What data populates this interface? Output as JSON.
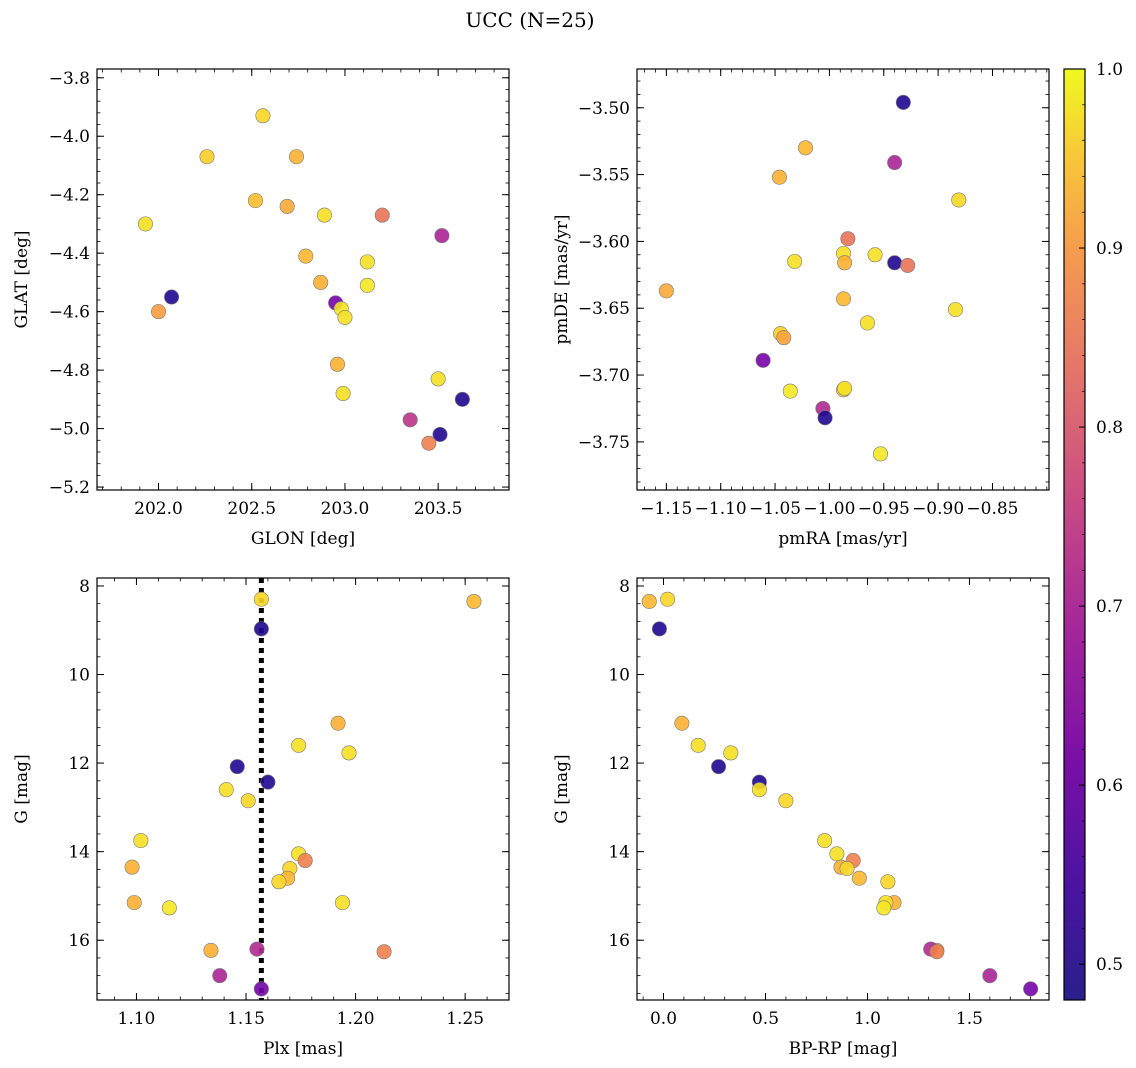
{
  "suptitle": "UCC (N=25)",
  "colorbar": {
    "colormap": "plasma",
    "range": [
      0.48,
      1.0
    ],
    "ticks": [
      0.5,
      0.6,
      0.7,
      0.8,
      0.9,
      1.0
    ],
    "tick_labels": [
      "0.5",
      "0.6",
      "0.7",
      "0.8",
      "0.9",
      "1.0"
    ]
  },
  "chart_data": [
    {
      "type": "scatter",
      "name": "glon-glat",
      "xlabel": "GLON [deg]",
      "ylabel": "GLAT [deg]",
      "xlim": [
        201.67,
        203.88
      ],
      "ylim": [
        -5.21,
        -3.77
      ],
      "x_ticks": [
        202.0,
        202.5,
        203.0,
        203.5
      ],
      "x_tick_labels": [
        "202.0",
        "202.5",
        "203.0",
        "203.5"
      ],
      "y_ticks": [
        -3.8,
        -4.0,
        -4.2,
        -4.4,
        -4.6,
        -4.8,
        -5.0,
        -5.2
      ],
      "y_tick_labels": [
        "−3.8",
        "−4.0",
        "−4.2",
        "−4.4",
        "−4.6",
        "−4.8",
        "−5.0",
        "−5.2"
      ],
      "points": [
        {
          "x": 201.93,
          "y": -4.3,
          "c": 0.97
        },
        {
          "x": 202.07,
          "y": -4.55,
          "c": 0.5
        },
        {
          "x": 202.0,
          "y": -4.6,
          "c": 0.88
        },
        {
          "x": 202.26,
          "y": -4.07,
          "c": 0.95
        },
        {
          "x": 202.56,
          "y": -3.93,
          "c": 0.96
        },
        {
          "x": 202.52,
          "y": -4.22,
          "c": 0.93
        },
        {
          "x": 202.69,
          "y": -4.24,
          "c": 0.9
        },
        {
          "x": 202.74,
          "y": -4.07,
          "c": 0.91
        },
        {
          "x": 202.79,
          "y": -4.41,
          "c": 0.92
        },
        {
          "x": 202.89,
          "y": -4.27,
          "c": 0.97
        },
        {
          "x": 202.87,
          "y": -4.5,
          "c": 0.91
        },
        {
          "x": 202.95,
          "y": -4.57,
          "c": 0.6
        },
        {
          "x": 202.98,
          "y": -4.59,
          "c": 0.98
        },
        {
          "x": 203.0,
          "y": -4.62,
          "c": 0.97
        },
        {
          "x": 203.12,
          "y": -4.43,
          "c": 0.97
        },
        {
          "x": 203.12,
          "y": -4.51,
          "c": 0.98
        },
        {
          "x": 203.2,
          "y": -4.27,
          "c": 0.82
        },
        {
          "x": 202.96,
          "y": -4.78,
          "c": 0.91
        },
        {
          "x": 202.99,
          "y": -4.88,
          "c": 0.97
        },
        {
          "x": 203.52,
          "y": -4.34,
          "c": 0.68
        },
        {
          "x": 203.5,
          "y": -4.83,
          "c": 0.97
        },
        {
          "x": 203.63,
          "y": -4.9,
          "c": 0.5
        },
        {
          "x": 203.35,
          "y": -4.97,
          "c": 0.71
        },
        {
          "x": 203.51,
          "y": -5.02,
          "c": 0.5
        },
        {
          "x": 203.45,
          "y": -5.05,
          "c": 0.84
        }
      ]
    },
    {
      "type": "scatter",
      "name": "pmra-pmde",
      "xlabel": "pmRA [mas/yr]",
      "ylabel": "pmDE [mas/yr]",
      "xlim": [
        -1.177,
        -0.798
      ],
      "ylim": [
        -3.786,
        -3.471
      ],
      "x_ticks": [
        -1.15,
        -1.1,
        -1.05,
        -1.0,
        -0.95,
        -0.9,
        -0.85
      ],
      "x_tick_labels": [
        "−1.15",
        "−1.10",
        "−1.05",
        "−1.00",
        "−0.95",
        "−0.90",
        "−0.85"
      ],
      "y_ticks": [
        -3.5,
        -3.55,
        -3.6,
        -3.65,
        -3.7,
        -3.75
      ],
      "y_tick_labels": [
        "−3.50",
        "−3.55",
        "−3.60",
        "−3.65",
        "−3.70",
        "−3.75"
      ],
      "points": [
        {
          "x": -0.932,
          "y": -3.496,
          "c": 0.5
        },
        {
          "x": -1.022,
          "y": -3.53,
          "c": 0.92
        },
        {
          "x": -0.94,
          "y": -3.541,
          "c": 0.68
        },
        {
          "x": -1.046,
          "y": -3.552,
          "c": 0.91
        },
        {
          "x": -0.881,
          "y": -3.569,
          "c": 0.96
        },
        {
          "x": -0.983,
          "y": -3.598,
          "c": 0.82
        },
        {
          "x": -0.987,
          "y": -3.609,
          "c": 0.97
        },
        {
          "x": -1.032,
          "y": -3.615,
          "c": 0.97
        },
        {
          "x": -0.958,
          "y": -3.61,
          "c": 0.97
        },
        {
          "x": -0.986,
          "y": -3.616,
          "c": 0.91
        },
        {
          "x": -0.94,
          "y": -3.616,
          "c": 0.5
        },
        {
          "x": -0.928,
          "y": -3.618,
          "c": 0.82
        },
        {
          "x": -1.15,
          "y": -3.637,
          "c": 0.9
        },
        {
          "x": -0.987,
          "y": -3.643,
          "c": 0.92
        },
        {
          "x": -0.884,
          "y": -3.651,
          "c": 0.97
        },
        {
          "x": -0.965,
          "y": -3.661,
          "c": 0.97
        },
        {
          "x": -1.045,
          "y": -3.669,
          "c": 0.95
        },
        {
          "x": -1.042,
          "y": -3.672,
          "c": 0.89
        },
        {
          "x": -1.061,
          "y": -3.689,
          "c": 0.6
        },
        {
          "x": -1.036,
          "y": -3.712,
          "c": 0.98
        },
        {
          "x": -0.987,
          "y": -3.711,
          "c": 0.96
        },
        {
          "x": -1.006,
          "y": -3.725,
          "c": 0.69
        },
        {
          "x": -1.004,
          "y": -3.732,
          "c": 0.5
        },
        {
          "x": -0.953,
          "y": -3.759,
          "c": 0.98
        },
        {
          "x": -0.986,
          "y": -3.71,
          "c": 0.97
        }
      ]
    },
    {
      "type": "scatter",
      "name": "plx-g",
      "xlabel": "Plx [mas]",
      "ylabel": "G [mag]",
      "xlim": [
        1.082,
        1.27
      ],
      "ylim": [
        17.35,
        7.82
      ],
      "x_ticks": [
        1.1,
        1.15,
        1.2,
        1.25
      ],
      "x_tick_labels": [
        "1.10",
        "1.15",
        "1.20",
        "1.25"
      ],
      "y_ticks": [
        8,
        10,
        12,
        14,
        16
      ],
      "y_tick_labels": [
        "8",
        "10",
        "12",
        "14",
        "16"
      ],
      "vline_x": 1.157,
      "points": [
        {
          "x": 1.157,
          "y": 8.3,
          "c": 0.96
        },
        {
          "x": 1.254,
          "y": 8.35,
          "c": 0.92
        },
        {
          "x": 1.157,
          "y": 8.97,
          "c": 0.5
        },
        {
          "x": 1.192,
          "y": 11.1,
          "c": 0.91
        },
        {
          "x": 1.174,
          "y": 11.6,
          "c": 0.97
        },
        {
          "x": 1.197,
          "y": 11.77,
          "c": 0.97
        },
        {
          "x": 1.146,
          "y": 12.08,
          "c": 0.5
        },
        {
          "x": 1.16,
          "y": 12.43,
          "c": 0.5
        },
        {
          "x": 1.141,
          "y": 12.6,
          "c": 0.97
        },
        {
          "x": 1.151,
          "y": 12.85,
          "c": 0.96
        },
        {
          "x": 1.102,
          "y": 13.75,
          "c": 0.97
        },
        {
          "x": 1.174,
          "y": 14.05,
          "c": 0.97
        },
        {
          "x": 1.177,
          "y": 14.2,
          "c": 0.84
        },
        {
          "x": 1.098,
          "y": 14.35,
          "c": 0.91
        },
        {
          "x": 1.17,
          "y": 14.38,
          "c": 0.96
        },
        {
          "x": 1.169,
          "y": 14.6,
          "c": 0.92
        },
        {
          "x": 1.165,
          "y": 14.68,
          "c": 0.96
        },
        {
          "x": 1.099,
          "y": 15.15,
          "c": 0.91
        },
        {
          "x": 1.194,
          "y": 15.15,
          "c": 0.97
        },
        {
          "x": 1.115,
          "y": 15.27,
          "c": 0.98
        },
        {
          "x": 1.134,
          "y": 16.23,
          "c": 0.91
        },
        {
          "x": 1.155,
          "y": 16.2,
          "c": 0.69
        },
        {
          "x": 1.213,
          "y": 16.26,
          "c": 0.84
        },
        {
          "x": 1.138,
          "y": 16.8,
          "c": 0.68
        },
        {
          "x": 1.157,
          "y": 17.1,
          "c": 0.6
        }
      ]
    },
    {
      "type": "scatter",
      "name": "bprp-g",
      "xlabel": "BP-RP [mag]",
      "ylabel": "G [mag]",
      "xlim": [
        -0.13,
        1.89
      ],
      "ylim": [
        17.35,
        7.82
      ],
      "x_ticks": [
        0.0,
        0.5,
        1.0,
        1.5
      ],
      "x_tick_labels": [
        "0.0",
        "0.5",
        "1.0",
        "1.5"
      ],
      "y_ticks": [
        8,
        10,
        12,
        14,
        16
      ],
      "y_tick_labels": [
        "8",
        "10",
        "12",
        "14",
        "16"
      ],
      "points": [
        {
          "x": -0.07,
          "y": 8.35,
          "c": 0.92
        },
        {
          "x": 0.02,
          "y": 8.3,
          "c": 0.96
        },
        {
          "x": -0.02,
          "y": 8.97,
          "c": 0.5
        },
        {
          "x": 0.09,
          "y": 11.1,
          "c": 0.91
        },
        {
          "x": 0.17,
          "y": 11.6,
          "c": 0.97
        },
        {
          "x": 0.33,
          "y": 11.77,
          "c": 0.97
        },
        {
          "x": 0.27,
          "y": 12.08,
          "c": 0.5
        },
        {
          "x": 0.47,
          "y": 12.43,
          "c": 0.5
        },
        {
          "x": 0.47,
          "y": 12.6,
          "c": 0.97
        },
        {
          "x": 0.6,
          "y": 12.85,
          "c": 0.96
        },
        {
          "x": 0.79,
          "y": 13.75,
          "c": 0.97
        },
        {
          "x": 0.85,
          "y": 14.05,
          "c": 0.97
        },
        {
          "x": 0.93,
          "y": 14.2,
          "c": 0.84
        },
        {
          "x": 0.87,
          "y": 14.35,
          "c": 0.91
        },
        {
          "x": 0.9,
          "y": 14.38,
          "c": 0.96
        },
        {
          "x": 0.96,
          "y": 14.6,
          "c": 0.92
        },
        {
          "x": 1.1,
          "y": 14.68,
          "c": 0.96
        },
        {
          "x": 1.13,
          "y": 15.15,
          "c": 0.91
        },
        {
          "x": 1.09,
          "y": 15.15,
          "c": 0.97
        },
        {
          "x": 1.08,
          "y": 15.27,
          "c": 0.98
        },
        {
          "x": 1.34,
          "y": 16.23,
          "c": 0.91
        },
        {
          "x": 1.31,
          "y": 16.2,
          "c": 0.69
        },
        {
          "x": 1.34,
          "y": 16.26,
          "c": 0.84
        },
        {
          "x": 1.6,
          "y": 16.8,
          "c": 0.68
        },
        {
          "x": 1.8,
          "y": 17.1,
          "c": 0.6
        }
      ]
    }
  ]
}
